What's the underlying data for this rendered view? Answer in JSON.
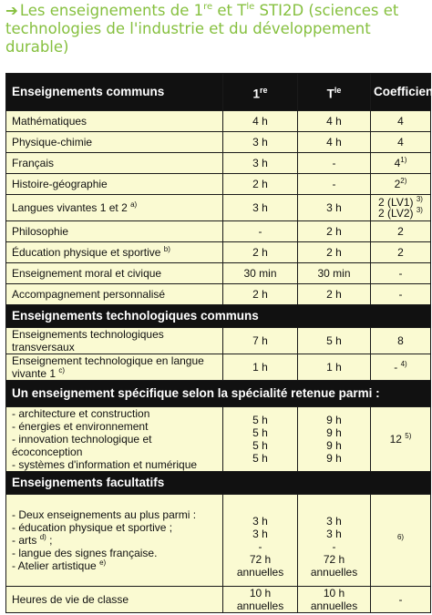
{
  "title": {
    "arrow": "➔",
    "pre": "Les enseignements de 1",
    "sup1": "re",
    "mid": " et T",
    "sup2": "le",
    "post": " STI2D (sciences et technologies de l'industrie et du développement durable)"
  },
  "header": {
    "col1": "Enseignements communs",
    "col2_base": "1",
    "col2_sup": "re",
    "col3_base": "T",
    "col3_sup": "le",
    "col4": "Coefficient"
  },
  "common": [
    {
      "name": "Mathématiques",
      "sup": "",
      "first": "4 h",
      "term": "4 h",
      "coef": "4",
      "coef_sup": ""
    },
    {
      "name": "Physique-chimie",
      "sup": "",
      "first": "3 h",
      "term": "4 h",
      "coef": "4",
      "coef_sup": ""
    },
    {
      "name": "Français",
      "sup": "",
      "first": "3 h",
      "term": "-",
      "coef": "4",
      "coef_sup": "1)"
    },
    {
      "name": "Histoire-géographie",
      "sup": "",
      "first": "2 h",
      "term": "-",
      "coef": "2",
      "coef_sup": "2)"
    },
    {
      "name": "Langues vivantes 1 et 2",
      "sup": "a)",
      "first": "3 h",
      "term": "3 h",
      "coef": "2 (LV1)",
      "coef_sup": "3)",
      "coef2": "2 (LV2)",
      "coef2_sup": "3)"
    },
    {
      "name": "Philosophie",
      "sup": "",
      "first": "-",
      "term": "2 h",
      "coef": "2",
      "coef_sup": ""
    },
    {
      "name": "Éducation physique et sportive",
      "sup": "b)",
      "first": "2 h",
      "term": "2 h",
      "coef": "2",
      "coef_sup": ""
    },
    {
      "name": "Enseignement moral et civique",
      "sup": "",
      "first": "30 min",
      "term": "30 min",
      "coef": "-",
      "coef_sup": ""
    },
    {
      "name": "Accompagnement personnalisé",
      "sup": "",
      "first": "2 h",
      "term": "2 h",
      "coef": "-",
      "coef_sup": ""
    }
  ],
  "tech_section": "Enseignements technologiques communs",
  "tech": [
    {
      "name": "Enseignements technologiques transversaux",
      "sup": "",
      "first": "7 h",
      "term": "5 h",
      "coef": "8",
      "coef_sup": ""
    },
    {
      "name": "Enseignement technologique en langue vivante 1",
      "sup": "c)",
      "first": "1 h",
      "term": "1 h",
      "coef": "-",
      "coef_sup": "4)"
    }
  ],
  "spec_section": "Un enseignement spécifique selon la spécialité retenue parmi :",
  "spec": {
    "items": [
      "- architecture et construction",
      "- énergies et environnement",
      "- innovation technologique et écoconception",
      "- systèmes d'information et numérique"
    ],
    "first": [
      "5 h",
      "5 h",
      "5 h",
      "5 h"
    ],
    "term": [
      "9 h",
      "9 h",
      "9 h",
      "9 h"
    ],
    "coef": "12",
    "coef_sup": "5)"
  },
  "fac_section": "Enseignements facultatifs",
  "fac": {
    "l1": "- Deux enseignements au plus parmi :",
    "l2": "- éducation physique et sportive ;",
    "l3": "- arts",
    "l3_sup": "d)",
    "l3_end": " ;",
    "l4": "- langue des signes française.",
    "l5": "- Atelier artistique",
    "l5_sup": "e)",
    "first": [
      "3 h",
      "3 h",
      "-",
      "72 h annuelles"
    ],
    "term": [
      "3 h",
      "3 h",
      "-",
      "72 h annuelles"
    ],
    "coef_sup": "6)"
  },
  "last": {
    "name": "Heures de vie de classe",
    "first": "10 h annuelles",
    "term": "10 h annuelles",
    "coef": "-"
  }
}
